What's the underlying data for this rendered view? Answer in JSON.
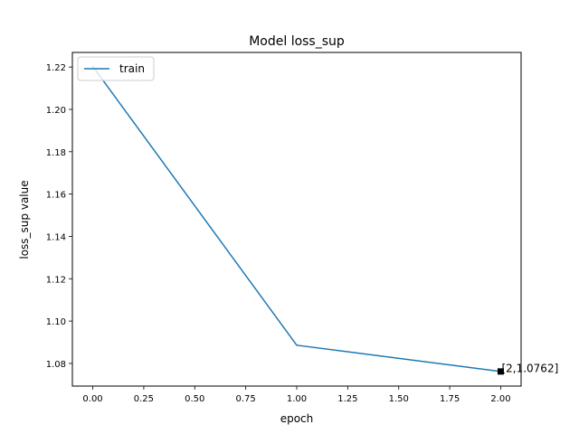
{
  "chart_data": {
    "type": "line",
    "title": "Model loss_sup",
    "xlabel": "epoch",
    "ylabel": "loss_sup value",
    "xlim": [
      -0.1,
      2.1
    ],
    "ylim": [
      1.0693,
      1.2269
    ],
    "x_ticks": [
      0.0,
      0.25,
      0.5,
      0.75,
      1.0,
      1.25,
      1.5,
      1.75,
      2.0
    ],
    "x_tick_labels": [
      "0.00",
      "0.25",
      "0.50",
      "0.75",
      "1.00",
      "1.25",
      "1.50",
      "1.75",
      "2.00"
    ],
    "y_ticks": [
      1.08,
      1.1,
      1.12,
      1.14,
      1.16,
      1.18,
      1.2,
      1.22
    ],
    "y_tick_labels": [
      "1.08",
      "1.10",
      "1.12",
      "1.14",
      "1.16",
      "1.18",
      "1.20",
      "1.22"
    ],
    "grid": false,
    "legend_position": "top-left",
    "series": [
      {
        "name": "train",
        "color": "#1f77b4",
        "x": [
          0,
          1,
          2
        ],
        "y": [
          1.2203,
          1.0886,
          1.0762
        ]
      }
    ],
    "annotations": [
      {
        "x": 2,
        "y": 1.0762,
        "text": "[2,1.0762]",
        "marker": "square",
        "marker_color": "#000000"
      }
    ]
  }
}
